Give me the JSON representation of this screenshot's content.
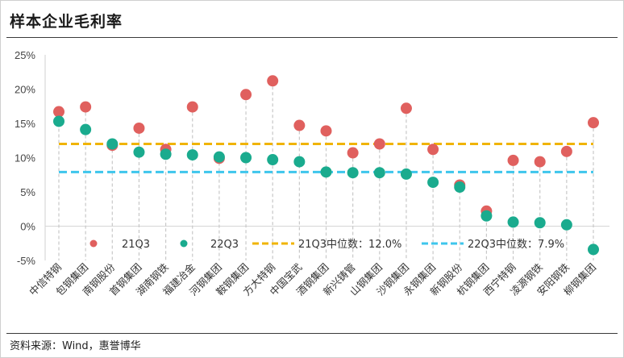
{
  "title": "样本企业毛利率",
  "source": "资料来源：Wind，惠誉博华",
  "chart_data": {
    "type": "scatter",
    "title": "样本企业毛利率",
    "categories": [
      "中信特钢",
      "包钢集团",
      "南钢股份",
      "首钢集团",
      "湖南钢铁",
      "福建冶金",
      "河钢集团",
      "鞍钢集团",
      "方大特钢",
      "中国宝武",
      "酒钢集团",
      "新兴铸管",
      "山钢集团",
      "沙钢集团",
      "永钢集团",
      "新钢股份",
      "杭钢集团",
      "西宁特钢",
      "凌源钢铁",
      "安阳钢铁",
      "柳钢集团"
    ],
    "series": [
      {
        "name": "21Q3",
        "color": "#e0605e",
        "values": [
          16.7,
          17.4,
          11.8,
          14.3,
          11.2,
          17.4,
          9.9,
          19.2,
          21.2,
          14.7,
          13.9,
          10.7,
          12.0,
          17.2,
          11.2,
          6.0,
          2.2,
          9.6,
          9.4,
          10.9,
          15.1
        ]
      },
      {
        "name": "22Q3",
        "color": "#1aab8e",
        "values": [
          15.3,
          14.1,
          12.0,
          10.8,
          10.5,
          10.4,
          10.1,
          10.0,
          9.7,
          9.4,
          7.9,
          7.8,
          7.8,
          7.6,
          6.4,
          5.7,
          1.5,
          0.6,
          0.5,
          0.2,
          -3.4
        ]
      }
    ],
    "reference_lines": [
      {
        "name": "21Q3中位数：12.0%",
        "value": 12.0,
        "color": "#f0b400"
      },
      {
        "name": "22Q3中位数：7.9%",
        "value": 7.9,
        "color": "#3ec6ec"
      }
    ],
    "y_ticks": [
      "-5%",
      "0%",
      "5%",
      "10%",
      "15%",
      "20%",
      "25%"
    ],
    "ylim": [
      -5,
      25
    ],
    "grid": false,
    "legend_position": "bottom-inside"
  }
}
